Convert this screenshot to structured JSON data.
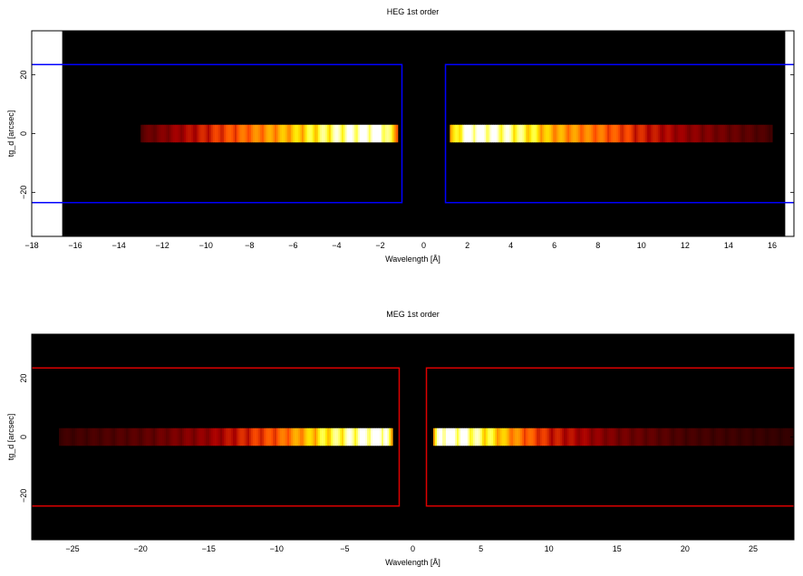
{
  "chart_data": [
    {
      "type": "heatmap",
      "title": "HEG 1st order",
      "xlabel": "Wavelength [Å]",
      "ylabel": "tg_d [arcsec]",
      "xlim": [
        -18,
        17
      ],
      "ylim": [
        -35,
        35
      ],
      "data_extent_x": [
        -16.6,
        16.6
      ],
      "xticks": [
        -18,
        -16,
        -14,
        -12,
        -10,
        -8,
        -6,
        -4,
        -2,
        0,
        2,
        4,
        6,
        8,
        10,
        12,
        14,
        16
      ],
      "yticks": [
        -20,
        0,
        20
      ],
      "grid": false,
      "colormap": "heat (black-red-orange-yellow-white)",
      "background_color": "#000000",
      "region_color": "#0000ff",
      "regions": [
        {
          "x": [
            -20,
            -1.0
          ],
          "y": [
            -23.5,
            23.5
          ]
        },
        {
          "x": [
            1.0,
            20
          ],
          "y": [
            -23.5,
            23.5
          ]
        }
      ],
      "series": [
        {
          "x": [
            -13,
            -10,
            -8,
            -6,
            -4,
            -2,
            -1.2
          ],
          "y": [
            0,
            0,
            0,
            0,
            0,
            0,
            0
          ],
          "intensity": [
            0.15,
            0.35,
            0.5,
            0.65,
            0.85,
            1.0,
            0.55
          ]
        },
        {
          "x": [
            1.2,
            2,
            4,
            6,
            8,
            10,
            12,
            14,
            16
          ],
          "y": [
            0,
            0,
            0,
            0,
            0,
            0,
            0,
            0,
            0
          ],
          "intensity": [
            0.55,
            1.0,
            0.85,
            0.6,
            0.5,
            0.35,
            0.25,
            0.18,
            0.12
          ]
        }
      ]
    },
    {
      "type": "heatmap",
      "title": "MEG 1st order",
      "xlabel": "Wavelength [Å]",
      "ylabel": "tg_d [arcsec]",
      "xlim": [
        -28,
        28
      ],
      "ylim": [
        -35,
        35
      ],
      "data_extent_x": [
        -28,
        28
      ],
      "xticks": [
        -25,
        -20,
        -15,
        -10,
        -5,
        0,
        5,
        10,
        15,
        20,
        25
      ],
      "yticks": [
        -20,
        0,
        20
      ],
      "grid": false,
      "colormap": "heat (black-red-orange-yellow-white)",
      "background_color": "#000000",
      "region_color": "#dd0000",
      "regions": [
        {
          "x": [
            -30,
            -1.0
          ],
          "y": [
            -23.5,
            23.5
          ]
        },
        {
          "x": [
            1.0,
            30
          ],
          "y": [
            -23.5,
            23.5
          ]
        }
      ],
      "series": [
        {
          "x": [
            -26,
            -20,
            -15,
            -10,
            -7,
            -4,
            -2,
            -1.5
          ],
          "y": [
            0,
            0,
            0,
            0,
            0,
            0,
            0,
            0
          ],
          "intensity": [
            0.1,
            0.15,
            0.25,
            0.45,
            0.7,
            0.9,
            1.0,
            0.5
          ]
        },
        {
          "x": [
            1.5,
            2,
            4,
            6,
            8,
            10,
            15,
            20,
            28
          ],
          "y": [
            0,
            0,
            0,
            0,
            0,
            0,
            0,
            0,
            0
          ],
          "intensity": [
            0.5,
            1.0,
            0.9,
            0.7,
            0.5,
            0.35,
            0.2,
            0.12,
            0.08
          ]
        }
      ]
    }
  ]
}
